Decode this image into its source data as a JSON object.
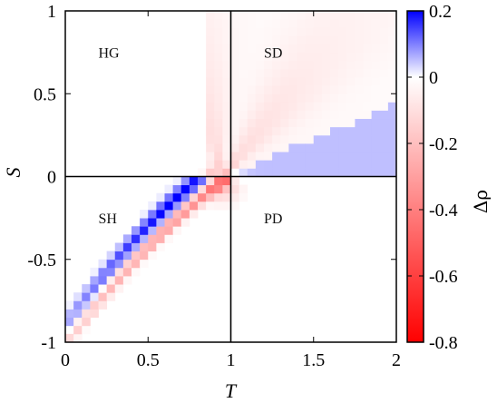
{
  "chart_data": {
    "type": "heatmap",
    "title": "",
    "xlabel": "T",
    "ylabel": "S",
    "xlim": [
      0,
      2
    ],
    "ylim": [
      -1,
      1
    ],
    "xticks": [
      "0",
      "0.5",
      "1",
      "1.5",
      "2"
    ],
    "yticks": [
      "-1",
      "-0.5",
      "0",
      "0.5",
      "1"
    ],
    "reference_lines": {
      "x": 1,
      "y": 0
    },
    "region_labels": [
      {
        "text": "HG",
        "x": 0.2,
        "y": 0.75
      },
      {
        "text": "SD",
        "x": 1.2,
        "y": 0.75
      },
      {
        "text": "SH",
        "x": 0.2,
        "y": -0.25
      },
      {
        "text": "PD",
        "x": 1.2,
        "y": -0.25
      }
    ],
    "colorbar": {
      "label": "Δρ",
      "range": [
        -0.8,
        0.2
      ],
      "ticks": [
        "0.2",
        "0",
        "-0.2",
        "-0.4",
        "-0.6",
        "-0.8"
      ],
      "tick_values": [
        0.2,
        0,
        -0.2,
        -0.4,
        -0.6,
        -0.8
      ],
      "colors": {
        "min": "#ff0000",
        "zero": "#ffffff",
        "max": "#0000ff"
      }
    },
    "grid_resolution": 0.05,
    "features": [
      {
        "region": "PD",
        "description": "blue wedge",
        "delta_rho": 0.05
      },
      {
        "region": "SH",
        "description": "blue diagonal band",
        "delta_rho_max": 0.2
      },
      {
        "region": "SH",
        "description": "red band below blue band",
        "delta_rho_min": -0.35
      },
      {
        "region": "SD",
        "description": "faint red fan",
        "delta_rho_min": -0.15
      }
    ]
  }
}
